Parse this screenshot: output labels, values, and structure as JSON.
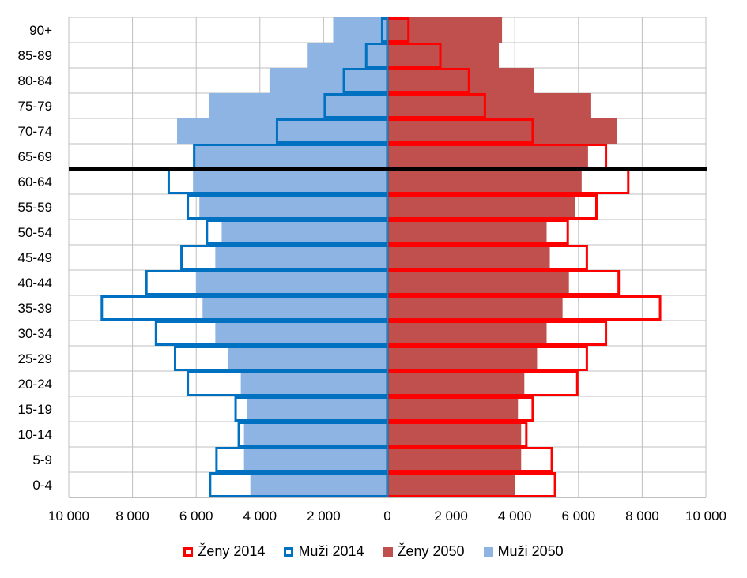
{
  "chart_data": {
    "type": "bar",
    "orientation": "horizontal-population-pyramid",
    "categories": [
      "0-4",
      "5-9",
      "10-14",
      "15-19",
      "20-24",
      "25-29",
      "30-34",
      "35-39",
      "40-44",
      "45-49",
      "50-54",
      "55-59",
      "60-64",
      "65-69",
      "70-74",
      "75-79",
      "80-84",
      "85-89",
      "90+"
    ],
    "series": [
      {
        "name": "Ženy 2014",
        "side": "right",
        "style": "outline",
        "color": "#ff0000",
        "values": [
          5300,
          5200,
          4400,
          4600,
          6000,
          6300,
          6900,
          8600,
          7300,
          6300,
          5700,
          6600,
          7600,
          6900,
          4600,
          3100,
          2600,
          1700,
          700
        ]
      },
      {
        "name": "Muži 2014",
        "side": "left",
        "style": "outline",
        "color": "#0070c0",
        "values": [
          5600,
          5400,
          4700,
          4800,
          6300,
          6700,
          7300,
          9000,
          7600,
          6500,
          5700,
          6300,
          6900,
          6100,
          3500,
          2000,
          1400,
          700,
          200
        ]
      },
      {
        "name": "Ženy 2050",
        "side": "right",
        "style": "fill",
        "color": "#c0504d",
        "values": [
          4000,
          4200,
          4200,
          4100,
          4300,
          4700,
          5000,
          5500,
          5700,
          5100,
          5000,
          5900,
          6100,
          6300,
          7200,
          6400,
          4600,
          3500,
          3600
        ]
      },
      {
        "name": "Muži 2050",
        "side": "left",
        "style": "fill",
        "color": "#8db4e2",
        "values": [
          4300,
          4500,
          4500,
          4400,
          4600,
          5000,
          5400,
          5800,
          6000,
          5400,
          5200,
          5900,
          6100,
          6100,
          6600,
          5600,
          3700,
          2500,
          1700
        ]
      }
    ],
    "xlim": [
      -10000,
      10000
    ],
    "xticks": [
      "10 000",
      "8 000",
      "6 000",
      "4 000",
      "2 000",
      "0",
      "2 000",
      "4 000",
      "6 000",
      "8 000",
      "10 000"
    ],
    "divider_between": [
      "60-64",
      "65-69"
    ],
    "divider_color": "#000000",
    "grid": true,
    "legend_position": "bottom"
  }
}
